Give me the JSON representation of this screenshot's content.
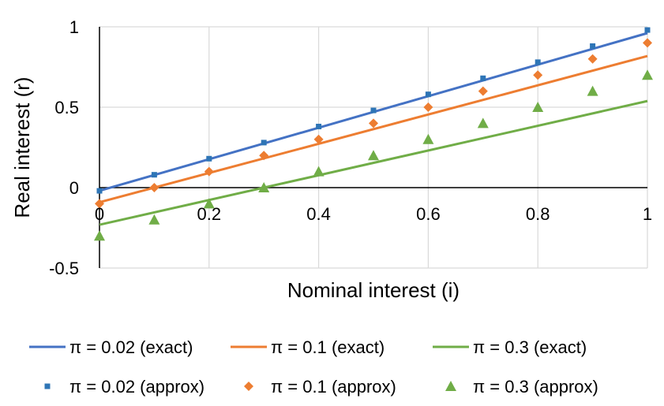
{
  "chart_data": {
    "type": "scatter",
    "xlabel": "Nominal interest (i)",
    "ylabel": "Real interest (r)",
    "xlim": [
      0,
      1
    ],
    "ylim": [
      -0.5,
      1
    ],
    "x_ticks": [
      "0",
      "0.2",
      "0.4",
      "0.6",
      "0.8",
      "1"
    ],
    "y_ticks": [
      "1",
      "0.5",
      "0",
      "-0.5"
    ],
    "grid": true,
    "legend_position": "bottom",
    "series": [
      {
        "name": "π = 0.02 (exact)",
        "kind": "line",
        "color": "#4472C4",
        "x": [
          0,
          1
        ],
        "y": [
          -0.0196,
          0.9608
        ]
      },
      {
        "name": "π = 0.1 (exact)",
        "kind": "line",
        "color": "#ED7D31",
        "x": [
          0,
          1
        ],
        "y": [
          -0.0909,
          0.8182
        ]
      },
      {
        "name": "π = 0.3 (exact)",
        "kind": "line",
        "color": "#70AD47",
        "x": [
          0,
          1
        ],
        "y": [
          -0.2308,
          0.5385
        ]
      },
      {
        "name": "π = 0.02 (approx)",
        "kind": "marker",
        "marker": "square",
        "color": "#2E75B6",
        "x": [
          0,
          0.1,
          0.2,
          0.3,
          0.4,
          0.5,
          0.6,
          0.7,
          0.8,
          0.9,
          1
        ],
        "y": [
          -0.02,
          0.08,
          0.18,
          0.28,
          0.38,
          0.48,
          0.58,
          0.68,
          0.78,
          0.88,
          0.98
        ]
      },
      {
        "name": "π = 0.1 (approx)",
        "kind": "marker",
        "marker": "diamond",
        "color": "#ED7D31",
        "x": [
          0,
          0.1,
          0.2,
          0.3,
          0.4,
          0.5,
          0.6,
          0.7,
          0.8,
          0.9,
          1
        ],
        "y": [
          -0.1,
          0.0,
          0.1,
          0.2,
          0.3,
          0.4,
          0.5,
          0.6,
          0.7,
          0.8,
          0.9
        ]
      },
      {
        "name": "π = 0.3 (approx)",
        "kind": "marker",
        "marker": "triangle",
        "color": "#70AD47",
        "x": [
          0,
          0.1,
          0.2,
          0.3,
          0.4,
          0.5,
          0.6,
          0.7,
          0.8,
          0.9,
          1
        ],
        "y": [
          -0.3,
          -0.2,
          -0.1,
          0.0,
          0.1,
          0.2,
          0.3,
          0.4,
          0.5,
          0.6,
          0.7
        ]
      }
    ]
  }
}
